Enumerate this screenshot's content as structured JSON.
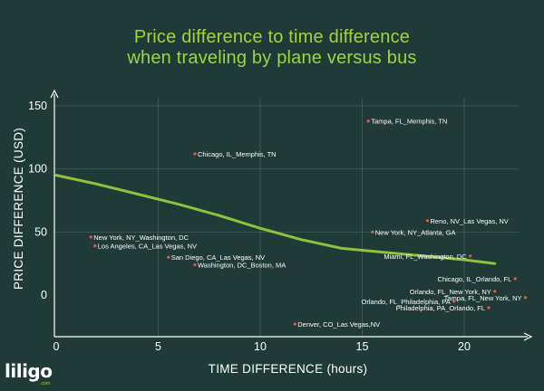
{
  "chart_data": {
    "type": "scatter",
    "title_lines": [
      "Price difference to time difference",
      "when traveling by plane versus bus"
    ],
    "xlabel": "TIME DIFFERENCE (hours)",
    "ylabel": "PRICE DIFFERENCE (USD)",
    "xlim": [
      0,
      23
    ],
    "ylim": [
      -25,
      150
    ],
    "xticks": [
      0,
      5,
      10,
      15,
      20
    ],
    "yticks": [
      0,
      50,
      100,
      150
    ],
    "grid": true,
    "points": [
      {
        "x": 15.3,
        "y": 138,
        "label": "Tampa, FL_Memphis, TN"
      },
      {
        "x": 6.8,
        "y": 112,
        "label": "Chicago, IL_Memphis, TN"
      },
      {
        "x": 1.7,
        "y": 46,
        "label": "New York, NY_Washington, DC"
      },
      {
        "x": 1.9,
        "y": 39,
        "label": "Los Angeles, CA_Las Vegas, NV"
      },
      {
        "x": 5.5,
        "y": 30,
        "label": "San Diego, CA_Las Vegas, NV"
      },
      {
        "x": 6.8,
        "y": 24,
        "label": "Washington, DC_Boston, MA"
      },
      {
        "x": 15.5,
        "y": 50,
        "label": "New York, NY_Atlanta, GA"
      },
      {
        "x": 18.2,
        "y": 59,
        "label": "Reno, NV_Las Vegas, NV"
      },
      {
        "x": 20.3,
        "y": 31,
        "label": "Miami, FL_Washington, DC"
      },
      {
        "x": 22.5,
        "y": 13,
        "label": "Chicago, IL_Orlando, FL"
      },
      {
        "x": 21.5,
        "y": 3,
        "label": "Orlando, FL_New York, NY"
      },
      {
        "x": 23.0,
        "y": -2,
        "label": "Tampa, FL_New York, NY"
      },
      {
        "x": 19.5,
        "y": -5,
        "label": "Orlando, FL_Philadelphia, PA"
      },
      {
        "x": 21.2,
        "y": -10,
        "label": "Philadelphia, PA_Orlando, FL"
      },
      {
        "x": 11.7,
        "y": -23,
        "label": "Denver, CO_Las Vegas,NV"
      }
    ],
    "trendline": {
      "x": [
        0,
        2,
        4,
        6,
        8,
        10,
        12,
        14,
        16,
        18,
        20,
        21.5
      ],
      "y": [
        95,
        88,
        80,
        72,
        63,
        53,
        44,
        37,
        34,
        31,
        28,
        25
      ]
    },
    "colors": {
      "background": "#1f3a37",
      "title": "#a6d23b",
      "trendline": "#8cc43c",
      "point": "#e85a4a",
      "text": "#ffffff",
      "grid": "#3d5753"
    }
  },
  "logo": {
    "text": "liligo",
    "sub": ".com"
  }
}
